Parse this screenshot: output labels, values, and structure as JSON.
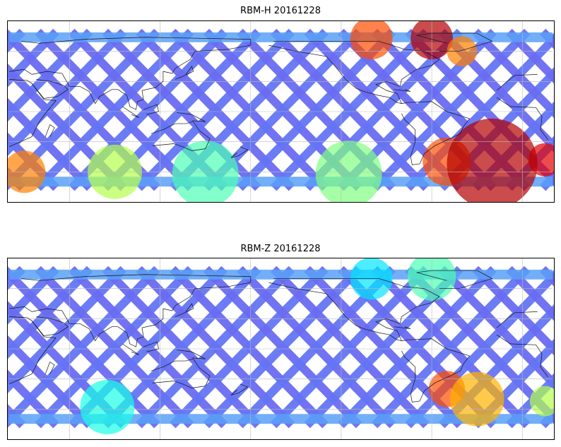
{
  "panels": [
    {
      "title": "RBM-H 20161228",
      "hot_zones": [
        {
          "lon": 15,
          "lat": -48,
          "r": 11,
          "level": 0.9
        },
        {
          "lon": 30,
          "lat": -60,
          "r": 14,
          "level": 0.75
        },
        {
          "lon": 90,
          "lat": -60,
          "r": 18,
          "level": 0.55
        },
        {
          "lon": 150,
          "lat": -62,
          "r": 22,
          "level": 0.45
        },
        {
          "lon": 245,
          "lat": -62,
          "r": 22,
          "level": 0.5
        },
        {
          "lon": 310,
          "lat": -50,
          "r": 16,
          "level": 0.8
        },
        {
          "lon": 340,
          "lat": -52,
          "r": 30,
          "level": 0.95
        },
        {
          "lon": 260,
          "lat": 73,
          "r": 14,
          "level": 0.8
        },
        {
          "lon": 300,
          "lat": 73,
          "r": 14,
          "level": 0.95
        },
        {
          "lon": 320,
          "lat": 60,
          "r": 10,
          "level": 0.75
        }
      ]
    },
    {
      "title": "RBM-Z 20161228",
      "hot_zones": [
        {
          "lon": 15,
          "lat": -52,
          "r": 10,
          "level": 0.55
        },
        {
          "lon": 85,
          "lat": -58,
          "r": 18,
          "level": 0.4
        },
        {
          "lon": 310,
          "lat": -40,
          "r": 12,
          "level": 0.8
        },
        {
          "lon": 330,
          "lat": -50,
          "r": 18,
          "level": 0.7
        },
        {
          "lon": 260,
          "lat": 70,
          "r": 14,
          "level": 0.35
        },
        {
          "lon": 300,
          "lat": 72,
          "r": 16,
          "level": 0.45
        }
      ]
    }
  ]
}
